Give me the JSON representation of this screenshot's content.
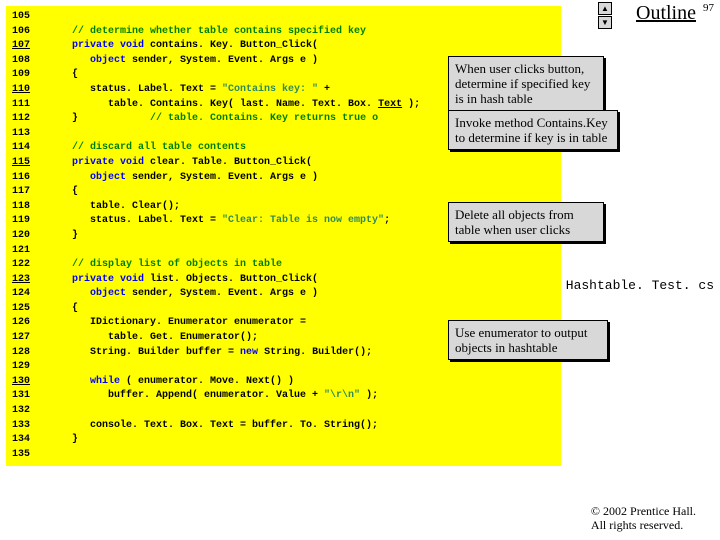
{
  "page_number": "97",
  "outline_label": "Outline",
  "filename": "Hashtable. Test. cs",
  "copyright_line1": "© 2002 Prentice Hall.",
  "copyright_line2": "All rights reserved.",
  "scroll_up_glyph": "▲",
  "scroll_down_glyph": "▼",
  "callouts": {
    "c1": "When user clicks button, determine if specified key is in hash table",
    "c2": "Invoke method Contains.Key to determine if key is in table",
    "c3": "Delete all objects from table when user clicks",
    "c4": "Use enumerator to output objects in hashtable"
  },
  "line_numbers": [
    {
      "n": "105",
      "u": false
    },
    {
      "n": "106",
      "u": false
    },
    {
      "n": "107",
      "u": true
    },
    {
      "n": "108",
      "u": false
    },
    {
      "n": "109",
      "u": false
    },
    {
      "n": "110",
      "u": true
    },
    {
      "n": "111",
      "u": false
    },
    {
      "n": "112",
      "u": false
    },
    {
      "n": "113",
      "u": false
    },
    {
      "n": "114",
      "u": false
    },
    {
      "n": "115",
      "u": true
    },
    {
      "n": "116",
      "u": false
    },
    {
      "n": "117",
      "u": false
    },
    {
      "n": "118",
      "u": false
    },
    {
      "n": "119",
      "u": false
    },
    {
      "n": "120",
      "u": false
    },
    {
      "n": "121",
      "u": false
    },
    {
      "n": "122",
      "u": false
    },
    {
      "n": "123",
      "u": true
    },
    {
      "n": "124",
      "u": false
    },
    {
      "n": "125",
      "u": false
    },
    {
      "n": "126",
      "u": false
    },
    {
      "n": "127",
      "u": false
    },
    {
      "n": "128",
      "u": false
    },
    {
      "n": "129",
      "u": false
    },
    {
      "n": "130",
      "u": true
    },
    {
      "n": "131",
      "u": false
    },
    {
      "n": "132",
      "u": false
    },
    {
      "n": "133",
      "u": false
    },
    {
      "n": "134",
      "u": false
    },
    {
      "n": "135",
      "u": false
    }
  ],
  "code_lines": [
    [],
    [
      {
        "cls": "c",
        "txt": "      // determine whether table contains specified key"
      }
    ],
    [
      {
        "cls": "k",
        "txt": "      private void"
      },
      {
        "cls": "t",
        "txt": " contains. Key. Button_Click("
      }
    ],
    [
      {
        "cls": "k",
        "txt": "         object"
      },
      {
        "cls": "t",
        "txt": " sender, System. Event. Args e )"
      }
    ],
    [
      {
        "cls": "t",
        "txt": "      {"
      }
    ],
    [
      {
        "cls": "t",
        "txt": "         status. Label. Text = "
      },
      {
        "cls": "s",
        "txt": "\"Contains key: \""
      },
      {
        "cls": "t",
        "txt": " +"
      }
    ],
    [
      {
        "cls": "t",
        "txt": "            table. Contains. Key( last. Name. Text. Box. "
      },
      {
        "cls": "n",
        "txt": "Text"
      },
      {
        "cls": "t",
        "txt": " );"
      }
    ],
    [
      {
        "cls": "t",
        "txt": "      }            "
      },
      {
        "cls": "c",
        "txt": "// table. Contains. Key returns true o"
      }
    ],
    [],
    [
      {
        "cls": "c",
        "txt": "      // discard all table contents"
      }
    ],
    [
      {
        "cls": "k",
        "txt": "      private void"
      },
      {
        "cls": "t",
        "txt": " clear. Table. Button_Click("
      }
    ],
    [
      {
        "cls": "k",
        "txt": "         object"
      },
      {
        "cls": "t",
        "txt": " sender, System. Event. Args e )"
      }
    ],
    [
      {
        "cls": "t",
        "txt": "      {"
      }
    ],
    [
      {
        "cls": "t",
        "txt": "         table. Clear();"
      }
    ],
    [
      {
        "cls": "t",
        "txt": "         status. Label. Text = "
      },
      {
        "cls": "s",
        "txt": "\"Clear: Table is now empty\""
      },
      {
        "cls": "t",
        "txt": ";"
      }
    ],
    [
      {
        "cls": "t",
        "txt": "      }"
      }
    ],
    [],
    [
      {
        "cls": "c",
        "txt": "      // display list of objects in table"
      }
    ],
    [
      {
        "cls": "k",
        "txt": "      private void"
      },
      {
        "cls": "t",
        "txt": " list. Objects. Button_Click("
      }
    ],
    [
      {
        "cls": "k",
        "txt": "         object"
      },
      {
        "cls": "t",
        "txt": " sender, System. Event. Args e )"
      }
    ],
    [
      {
        "cls": "t",
        "txt": "      {"
      }
    ],
    [
      {
        "cls": "t",
        "txt": "         IDictionary. Enumerator enumerator ="
      }
    ],
    [
      {
        "cls": "t",
        "txt": "            table. Get. Enumerator();"
      }
    ],
    [
      {
        "cls": "t",
        "txt": "         String. Builder buffer = "
      },
      {
        "cls": "k",
        "txt": "new"
      },
      {
        "cls": "t",
        "txt": " String. Builder();"
      }
    ],
    [],
    [
      {
        "cls": "k",
        "txt": "         while"
      },
      {
        "cls": "t",
        "txt": " ( enumerator. Move. Next() )"
      }
    ],
    [
      {
        "cls": "t",
        "txt": "            buffer. Append( enumerator. Value + "
      },
      {
        "cls": "s",
        "txt": "\"\\r\\n\""
      },
      {
        "cls": "t",
        "txt": " );"
      }
    ],
    [],
    [
      {
        "cls": "t",
        "txt": "         console. Text. Box. Text = buffer. To. String();"
      }
    ],
    [
      {
        "cls": "t",
        "txt": "      }"
      }
    ],
    []
  ]
}
